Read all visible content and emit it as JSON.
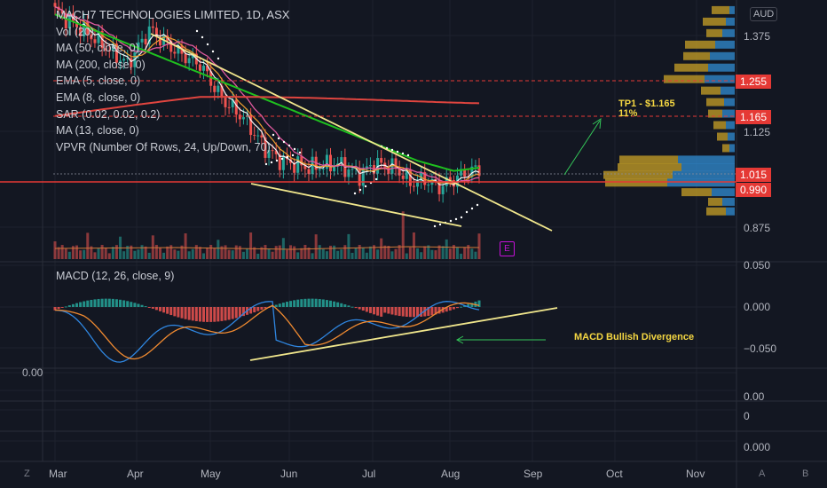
{
  "header": {
    "title": "MACH7 TECHNOLOGIES LIMITED, 1D, ASX",
    "currency_badge": "AUD"
  },
  "indicators": [
    "Vol (20)",
    "MA (50, close, 0)",
    "MA (200, close, 0)",
    "EMA (5, close, 0)",
    "EMA (8, close, 0)",
    "SAR (0.02, 0.02, 0.2)",
    "MA (13, close, 0)",
    "VPVR (Number Of Rows, 24, Up/Down, 70)"
  ],
  "macd_label": "MACD (12, 26, close, 9)",
  "annotations": {
    "tp1_line1": "TP1 - $1.165",
    "tp1_line2": "11%",
    "macd_divergence": "MACD Bullish Divergence",
    "earnings_badge": "E"
  },
  "price_axis": {
    "ticks": [
      "1.375",
      "1.125",
      "0.875"
    ],
    "tags": [
      {
        "label": "1.255",
        "color": "#e53935"
      },
      {
        "label": "1.165",
        "color": "#e53935"
      },
      {
        "label": "1.015",
        "color": "#e53935"
      },
      {
        "label": "0.990",
        "color": "#e53935"
      }
    ]
  },
  "macd_axis": {
    "ticks": [
      "0.050",
      "0.000",
      "−0.050"
    ]
  },
  "lower_panes": {
    "left_label": "0.00",
    "ticks": [
      "0.00",
      "0",
      "0.000"
    ]
  },
  "x_axis": {
    "ticks": [
      "Mar",
      "Apr",
      "May",
      "Jun",
      "Jul",
      "Aug",
      "Sep",
      "Oct",
      "Nov"
    ]
  },
  "corner_buttons": {
    "left": "Z",
    "a": "A",
    "b": "B"
  },
  "colors": {
    "background": "#131722",
    "up": "#26a69a",
    "down": "#ef5350",
    "ma50": "#1fc01f",
    "ma200": "#e0453f",
    "trendline": "#f0e68c",
    "support": "#e53935"
  },
  "chart_data": {
    "type": "line",
    "x": [
      "Mar",
      "Apr",
      "May",
      "Jun",
      "Jul",
      "Aug"
    ],
    "series": [
      {
        "values": [
          1.44,
          1.36,
          1.19,
          1.06,
          1.03,
          1.01
        ]
      }
    ],
    "ylim": [
      0.8,
      1.45
    ],
    "levels": [
      1.255,
      1.165,
      1.015,
      0.99
    ],
    "macd": {
      "ylim": [
        -0.075,
        0.055
      ]
    }
  }
}
